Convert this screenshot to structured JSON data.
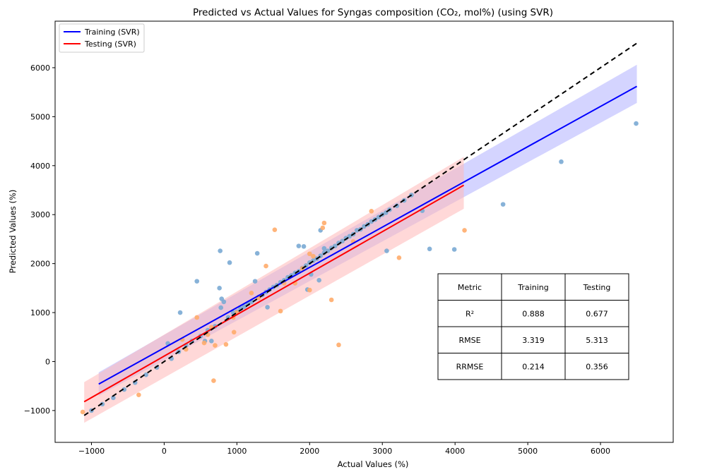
{
  "chart_data": {
    "type": "scatter",
    "title": "Predicted vs Actual Values for Syngas composition (CO₂, mol%) (using SVR)",
    "xlabel": "Actual Values (%)",
    "ylabel": "Predicted Values (%)",
    "xlim": [
      -1500,
      7000
    ],
    "ylim": [
      -1650,
      6950
    ],
    "xticks": [
      -1000,
      0,
      1000,
      2000,
      3000,
      4000,
      5000,
      6000
    ],
    "yticks": [
      -1000,
      0,
      1000,
      2000,
      3000,
      4000,
      5000,
      6000
    ],
    "xtick_labels": [
      "−1000",
      "0",
      "1000",
      "2000",
      "3000",
      "4000",
      "5000",
      "6000"
    ],
    "ytick_labels": [
      "−1000",
      "0",
      "1000",
      "2000",
      "3000",
      "4000",
      "5000",
      "6000"
    ],
    "legend_position": "top-left",
    "colors": {
      "train_points": "#7aaad4",
      "test_points": "#ffac6b",
      "train_fit": "#0000ff",
      "test_fit": "#ff0000",
      "train_band": "#b0b0ff",
      "test_band": "#ffb8b8",
      "identity": "#000000"
    },
    "series": [
      {
        "name": "Training (SVR)",
        "kind": "fit_line",
        "x": [
          -900,
          6500
        ],
        "y": [
          -460,
          5620
        ],
        "band_upper": [
          -220,
          6060
        ],
        "band_lower": [
          -700,
          5280
        ]
      },
      {
        "name": "Testing (SVR)",
        "kind": "fit_line",
        "x": [
          -1100,
          4120
        ],
        "y": [
          -820,
          3600
        ],
        "band_upper": [
          -420,
          4180
        ],
        "band_lower": [
          -1250,
          3120
        ]
      }
    ],
    "identity_line": {
      "x": [
        -1100,
        6500
      ],
      "y": [
        -1100,
        6500
      ]
    },
    "train_points": [
      [
        -1000,
        -1000
      ],
      [
        -850,
        -870
      ],
      [
        -700,
        -740
      ],
      [
        -550,
        -570
      ],
      [
        -400,
        -430
      ],
      [
        -250,
        -270
      ],
      [
        -100,
        -120
      ],
      [
        50,
        370
      ],
      [
        100,
        60
      ],
      [
        200,
        200
      ],
      [
        220,
        1000
      ],
      [
        300,
        330
      ],
      [
        380,
        420
      ],
      [
        450,
        1640
      ],
      [
        500,
        520
      ],
      [
        560,
        420
      ],
      [
        600,
        640
      ],
      [
        650,
        420
      ],
      [
        700,
        720
      ],
      [
        760,
        1500
      ],
      [
        770,
        2260
      ],
      [
        780,
        1100
      ],
      [
        790,
        1280
      ],
      [
        820,
        1220
      ],
      [
        880,
        900
      ],
      [
        900,
        2020
      ],
      [
        950,
        1000
      ],
      [
        1000,
        1020
      ],
      [
        1050,
        1080
      ],
      [
        1100,
        1120
      ],
      [
        1150,
        1180
      ],
      [
        1200,
        1220
      ],
      [
        1250,
        1640
      ],
      [
        1280,
        2210
      ],
      [
        1300,
        1320
      ],
      [
        1350,
        1360
      ],
      [
        1400,
        1420
      ],
      [
        1420,
        1110
      ],
      [
        1450,
        1470
      ],
      [
        1500,
        1520
      ],
      [
        1550,
        1560
      ],
      [
        1600,
        1620
      ],
      [
        1650,
        1660
      ],
      [
        1700,
        1720
      ],
      [
        1750,
        1760
      ],
      [
        1800,
        1810
      ],
      [
        1850,
        1840
      ],
      [
        1850,
        2360
      ],
      [
        1900,
        1910
      ],
      [
        1920,
        2350
      ],
      [
        1950,
        1960
      ],
      [
        1970,
        1470
      ],
      [
        2000,
        2020
      ],
      [
        2020,
        1780
      ],
      [
        2050,
        2060
      ],
      [
        2100,
        2100
      ],
      [
        2130,
        1660
      ],
      [
        2150,
        2160
      ],
      [
        2150,
        2680
      ],
      [
        2200,
        2220
      ],
      [
        2200,
        2310
      ],
      [
        2250,
        2260
      ],
      [
        2300,
        2320
      ],
      [
        2350,
        2360
      ],
      [
        2400,
        2420
      ],
      [
        2450,
        2460
      ],
      [
        2500,
        2520
      ],
      [
        2550,
        2560
      ],
      [
        2600,
        2600
      ],
      [
        2650,
        2680
      ],
      [
        2700,
        2700
      ],
      [
        2750,
        2760
      ],
      [
        2800,
        2800
      ],
      [
        2850,
        2860
      ],
      [
        2900,
        2900
      ],
      [
        2950,
        2950
      ],
      [
        3000,
        3000
      ],
      [
        3050,
        3040
      ],
      [
        3060,
        2260
      ],
      [
        3100,
        3100
      ],
      [
        3200,
        3180
      ],
      [
        3300,
        3290
      ],
      [
        3400,
        3400
      ],
      [
        3550,
        3080
      ],
      [
        3650,
        2300
      ],
      [
        3990,
        2290
      ],
      [
        4660,
        3210
      ],
      [
        5460,
        4080
      ],
      [
        6490,
        4860
      ]
    ],
    "test_points": [
      [
        -1120,
        -1030
      ],
      [
        -350,
        -680
      ],
      [
        250,
        450
      ],
      [
        300,
        250
      ],
      [
        450,
        900
      ],
      [
        550,
        380
      ],
      [
        600,
        550
      ],
      [
        650,
        700
      ],
      [
        680,
        -390
      ],
      [
        700,
        330
      ],
      [
        850,
        350
      ],
      [
        950,
        900
      ],
      [
        960,
        600
      ],
      [
        1000,
        1000
      ],
      [
        1200,
        1400
      ],
      [
        1300,
        1300
      ],
      [
        1400,
        1950
      ],
      [
        1520,
        2690
      ],
      [
        1600,
        1030
      ],
      [
        1650,
        1600
      ],
      [
        1800,
        1600
      ],
      [
        1900,
        1900
      ],
      [
        2000,
        1460
      ],
      [
        2000,
        2200
      ],
      [
        2050,
        2150
      ],
      [
        2180,
        2730
      ],
      [
        2200,
        2830
      ],
      [
        2300,
        1260
      ],
      [
        2400,
        340
      ],
      [
        2600,
        2450
      ],
      [
        2850,
        3070
      ],
      [
        3230,
        2120
      ],
      [
        4130,
        2680
      ]
    ],
    "metrics_table": {
      "headers": [
        "Metric",
        "Training",
        "Testing"
      ],
      "rows": [
        [
          "R²",
          "0.888",
          "0.677"
        ],
        [
          "RMSE",
          "3.319",
          "5.313"
        ],
        [
          "RRMSE",
          "0.214",
          "0.356"
        ]
      ]
    }
  }
}
